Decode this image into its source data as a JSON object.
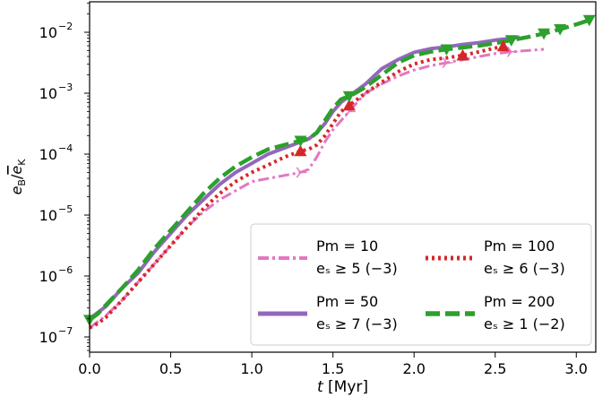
{
  "chart_data": {
    "type": "line",
    "title": "",
    "xlabel": "t [Myr]",
    "ylabel": "e_B / e_K",
    "xlim": [
      0.0,
      3.12
    ],
    "ylim_log10": [
      -7.25,
      -1.5
    ],
    "yscale": "log",
    "xticks": [
      "0.0",
      "0.5",
      "1.0",
      "1.5",
      "2.0",
      "2.5",
      "3.0"
    ],
    "yticks": [
      {
        "base": "10",
        "exp": "−2",
        "log10": -2
      },
      {
        "base": "10",
        "exp": "−3",
        "log10": -3
      },
      {
        "base": "10",
        "exp": "−4",
        "log10": -4
      },
      {
        "base": "10",
        "exp": "−5",
        "log10": -5
      },
      {
        "base": "10",
        "exp": "−6",
        "log10": -6
      },
      {
        "base": "10",
        "exp": "−7",
        "log10": -7
      }
    ],
    "legend_position": "lower-right",
    "series": [
      {
        "name": "Pm = 10",
        "sub": "e_s ≥ 5 (−3)",
        "label_main": "Pm = 10",
        "label_sub": "eₛ ≥ 5 (−3)",
        "color": "#e377c2",
        "style": "dashdot",
        "marker": "tri_right",
        "x": [
          0.0,
          0.05,
          0.1,
          0.2,
          0.3,
          0.4,
          0.5,
          0.6,
          0.7,
          0.8,
          0.9,
          1.0,
          1.1,
          1.2,
          1.3,
          1.35,
          1.4,
          1.45,
          1.5,
          1.55,
          1.6,
          1.65,
          1.7,
          1.8,
          1.9,
          2.0,
          2.1,
          2.2,
          2.3,
          2.4,
          2.5,
          2.6,
          2.7,
          2.8
        ],
        "log10": [
          -6.85,
          -6.75,
          -6.65,
          -6.4,
          -6.1,
          -5.8,
          -5.5,
          -5.2,
          -4.95,
          -4.75,
          -4.6,
          -4.45,
          -4.4,
          -4.35,
          -4.3,
          -4.25,
          -4.05,
          -3.8,
          -3.6,
          -3.45,
          -3.3,
          -3.15,
          -3.0,
          -2.85,
          -2.72,
          -2.62,
          -2.55,
          -2.5,
          -2.45,
          -2.4,
          -2.35,
          -2.32,
          -2.3,
          -2.28
        ],
        "marker_idx": [
          14,
          20,
          27,
          31
        ]
      },
      {
        "name": "Pm = 50",
        "sub": "e_s ≥ 7 (−3)",
        "label_main": "Pm = 50",
        "label_sub": "eₛ ≥ 7 (−3)",
        "color": "#9467bd",
        "style": "solid",
        "marker": "none",
        "x": [
          0.0,
          0.05,
          0.1,
          0.2,
          0.3,
          0.4,
          0.5,
          0.6,
          0.7,
          0.8,
          0.9,
          1.0,
          1.1,
          1.2,
          1.3,
          1.35,
          1.4,
          1.45,
          1.5,
          1.55,
          1.6,
          1.65,
          1.7,
          1.8,
          1.9,
          2.0,
          2.1,
          2.2,
          2.3,
          2.4,
          2.5,
          2.6,
          2.65
        ],
        "log10": [
          -6.7,
          -6.6,
          -6.5,
          -6.2,
          -5.95,
          -5.6,
          -5.3,
          -5.0,
          -4.75,
          -4.5,
          -4.3,
          -4.15,
          -4.0,
          -3.9,
          -3.8,
          -3.75,
          -3.65,
          -3.5,
          -3.3,
          -3.15,
          -3.05,
          -2.95,
          -2.85,
          -2.6,
          -2.45,
          -2.33,
          -2.27,
          -2.24,
          -2.2,
          -2.17,
          -2.13,
          -2.1,
          -2.08
        ],
        "marker_idx": []
      },
      {
        "name": "Pm = 100",
        "sub": "e_s ≥ 6 (−3)",
        "label_main": "Pm = 100",
        "label_sub": "eₛ ≥ 6 (−3)",
        "color": "#d62728",
        "style": "dotted",
        "marker": "triangle_up",
        "x": [
          0.0,
          0.05,
          0.1,
          0.2,
          0.3,
          0.4,
          0.5,
          0.6,
          0.7,
          0.8,
          0.9,
          1.0,
          1.1,
          1.2,
          1.3,
          1.35,
          1.4,
          1.45,
          1.5,
          1.55,
          1.6,
          1.65,
          1.7,
          1.8,
          1.9,
          2.0,
          2.1,
          2.2,
          2.3,
          2.4,
          2.5,
          2.55
        ],
        "log10": [
          -6.85,
          -6.78,
          -6.68,
          -6.4,
          -6.1,
          -5.8,
          -5.5,
          -5.2,
          -4.9,
          -4.65,
          -4.45,
          -4.3,
          -4.18,
          -4.05,
          -3.95,
          -3.92,
          -3.85,
          -3.7,
          -3.5,
          -3.3,
          -3.2,
          -3.1,
          -3.0,
          -2.82,
          -2.65,
          -2.52,
          -2.45,
          -2.42,
          -2.38,
          -2.32,
          -2.26,
          -2.23
        ],
        "marker_idx": [
          14,
          20,
          28,
          31
        ]
      },
      {
        "name": "Pm = 200",
        "sub": "e_s ≥ 1 (−2)",
        "label_main": "Pm = 200",
        "label_sub": "eₛ ≥ 1 (−2)",
        "color": "#2ca02c",
        "style": "dashed",
        "marker": "triangle_down",
        "x": [
          0.0,
          0.05,
          0.1,
          0.2,
          0.3,
          0.4,
          0.5,
          0.6,
          0.7,
          0.8,
          0.9,
          1.0,
          1.1,
          1.2,
          1.3,
          1.35,
          1.4,
          1.45,
          1.5,
          1.55,
          1.6,
          1.65,
          1.7,
          1.8,
          1.9,
          2.0,
          2.1,
          2.2,
          2.3,
          2.4,
          2.5,
          2.6,
          2.7,
          2.8,
          2.9,
          3.0,
          3.08
        ],
        "log10": [
          -6.72,
          -6.62,
          -6.48,
          -6.2,
          -5.9,
          -5.55,
          -5.25,
          -4.95,
          -4.65,
          -4.4,
          -4.2,
          -4.05,
          -3.92,
          -3.85,
          -3.78,
          -3.75,
          -3.65,
          -3.45,
          -3.25,
          -3.1,
          -3.05,
          -2.98,
          -2.9,
          -2.7,
          -2.5,
          -2.38,
          -2.32,
          -2.28,
          -2.25,
          -2.22,
          -2.18,
          -2.13,
          -2.08,
          -2.02,
          -1.95,
          -1.87,
          -1.8
        ],
        "marker_idx": [
          0,
          14,
          20,
          27,
          31,
          33,
          34,
          36
        ]
      }
    ]
  }
}
